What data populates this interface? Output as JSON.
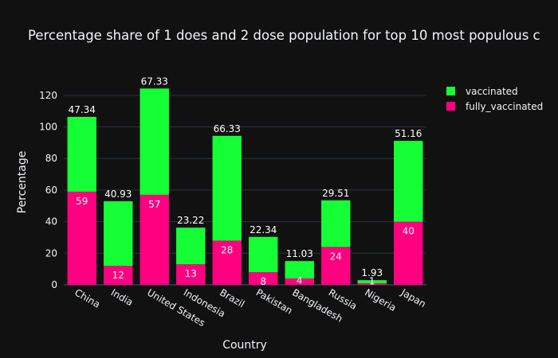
{
  "chart_data": {
    "type": "bar",
    "stacked": true,
    "title": "Percentage share of 1 does and 2 dose population for top 10 most populous c",
    "xlabel": "Country",
    "ylabel": "Percentage",
    "ylim": [
      0,
      130
    ],
    "yticks": [
      0,
      20,
      40,
      60,
      80,
      100,
      120
    ],
    "grid": true,
    "legend_position": "right",
    "background": "#111111",
    "categories": [
      "China",
      "India",
      "United States",
      "Indonesia",
      "Brazil",
      "Pakistan",
      "Bangladesh",
      "Russia",
      "Nigeria",
      "Japan"
    ],
    "series": [
      {
        "name": "fully_vaccinated",
        "color": "#ff0080",
        "values": [
          59,
          12,
          57,
          13,
          28,
          8,
          4,
          24,
          1,
          40
        ],
        "labels": [
          "59",
          "12",
          "57",
          "13",
          "28",
          "8",
          "4",
          "24",
          "1",
          "40"
        ],
        "label_position": "inside",
        "label_color": "#f2f5fa"
      },
      {
        "name": "vaccinated",
        "color": "#15ff36",
        "values": [
          47.34,
          40.93,
          67.33,
          23.22,
          66.33,
          22.34,
          11.03,
          29.51,
          1.93,
          51.16
        ],
        "labels": [
          "47.34",
          "40.93",
          "67.33",
          "23.22",
          "66.33",
          "22.34",
          "11.03",
          "29.51",
          "1.93",
          "51.16"
        ],
        "label_position": "outside",
        "label_color": "#ffffff"
      }
    ]
  }
}
